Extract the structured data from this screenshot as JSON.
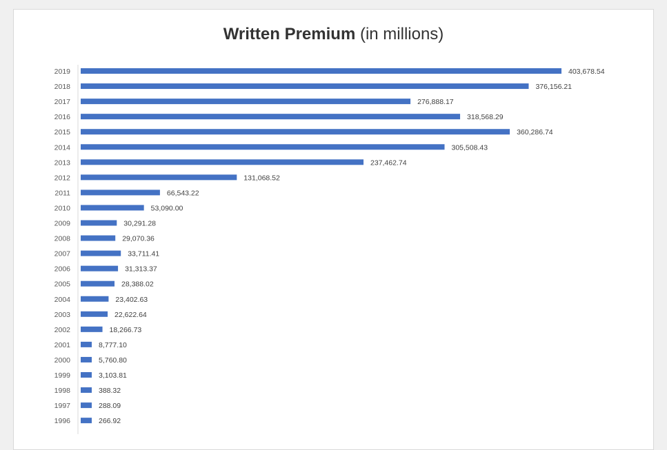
{
  "chart_data": {
    "type": "bar",
    "orientation": "horizontal",
    "title_bold": "Written Premium",
    "title_suffix": "(in millions)",
    "categories": [
      "2019",
      "2018",
      "2017",
      "2016",
      "2015",
      "2014",
      "2013",
      "2012",
      "2011",
      "2010",
      "2009",
      "2008",
      "2007",
      "2006",
      "2005",
      "2004",
      "2003",
      "2002",
      "2001",
      "2000",
      "1999",
      "1998",
      "1997",
      "1996"
    ],
    "values": [
      403678.54,
      376156.21,
      276888.17,
      318568.29,
      360286.74,
      305508.43,
      237462.74,
      131068.52,
      66543.22,
      53090.0,
      30291.28,
      29070.36,
      33711.41,
      31313.37,
      28388.02,
      23402.63,
      22622.64,
      18266.73,
      8777.1,
      5760.8,
      3103.81,
      388.32,
      288.09,
      266.92
    ],
    "data_labels": [
      "403,678.54",
      "376,156.21",
      "276,888.17",
      "318,568.29",
      "360,286.74",
      "305,508.43",
      "237,462.74",
      "131,068.52",
      "66,543.22",
      "53,090.00",
      "30,291.28",
      "29,070.36",
      "33,711.41",
      "31,313.37",
      "28,388.02",
      "23,402.63",
      "22,622.64",
      "18,266.73",
      "8,777.10",
      "5,760.80",
      "3,103.81",
      "388.32",
      "288.09",
      "266.92"
    ],
    "xlabel": "",
    "ylabel": "",
    "grid": false,
    "legend": "none",
    "bar_color": "#4472c4"
  }
}
